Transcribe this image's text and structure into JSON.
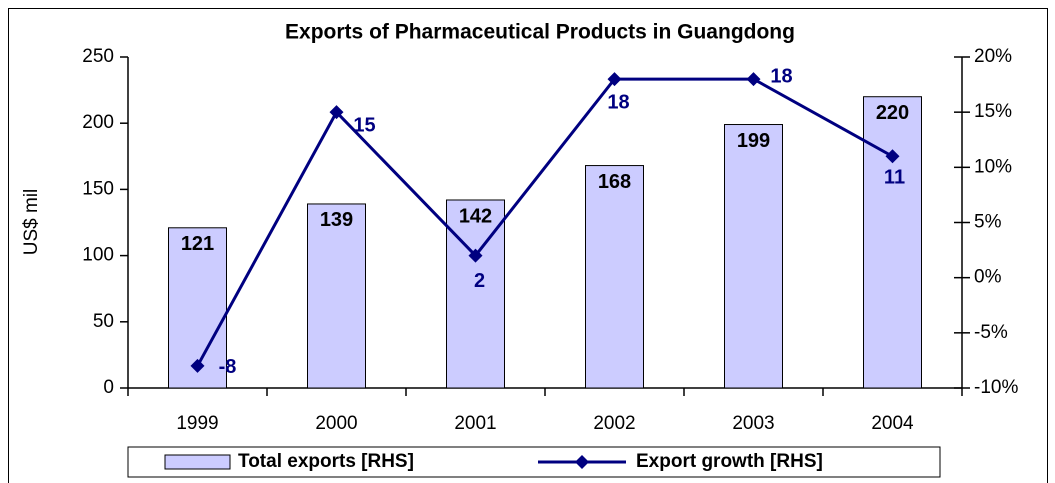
{
  "chart_data": {
    "type": "bar-line",
    "title": "Exports of Pharmaceutical Products in Guangdong",
    "ylabel": "US$ mil",
    "categories": [
      "1999",
      "2000",
      "2001",
      "2002",
      "2003",
      "2004"
    ],
    "series": [
      {
        "name": "Total exports [RHS]",
        "type": "bar",
        "color": "#ccccff",
        "values": [
          121,
          139,
          142,
          168,
          199,
          220
        ]
      },
      {
        "name": "Export growth [RHS]",
        "type": "line",
        "axis": "y2",
        "color": "#000080",
        "values": [
          -8,
          15,
          2,
          18,
          18,
          11
        ]
      }
    ],
    "ylim": [
      0,
      250
    ],
    "yticks": [
      0,
      50,
      100,
      150,
      200,
      250
    ],
    "y2lim": [
      -10,
      20
    ],
    "y2ticks": [
      {
        "value": -10,
        "label": "-10%"
      },
      {
        "value": -5,
        "label": "-5%"
      },
      {
        "value": 0,
        "label": "0%"
      },
      {
        "value": 5,
        "label": "5%"
      },
      {
        "value": 10,
        "label": "10%"
      },
      {
        "value": 15,
        "label": "15%"
      },
      {
        "value": 20,
        "label": "20%"
      }
    ],
    "grid": false,
    "legend": "bottom"
  }
}
